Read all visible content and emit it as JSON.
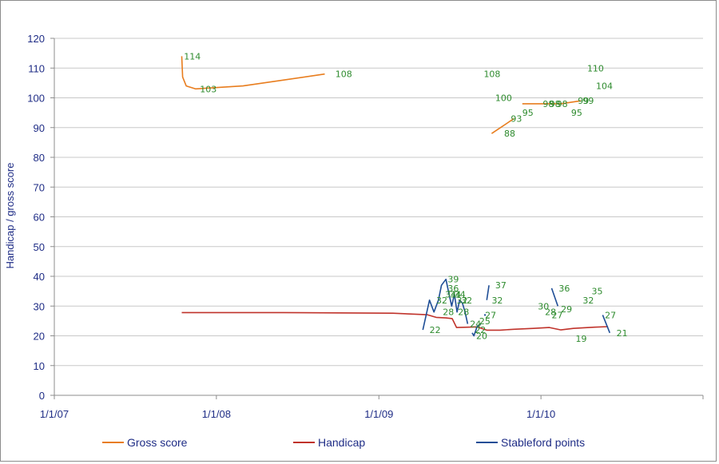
{
  "chart_data": {
    "type": "line",
    "ylabel": "Handicap / gross score",
    "xlabel": "",
    "ylim": [
      0,
      120
    ],
    "y_ticks": [
      "0",
      "10",
      "20",
      "30",
      "40",
      "50",
      "60",
      "70",
      "80",
      "90",
      "100",
      "110",
      "120"
    ],
    "x_ticks": [
      {
        "label": "1/1/07",
        "date": "2007-01-01"
      },
      {
        "label": "1/1/08",
        "date": "2008-01-01"
      },
      {
        "label": "1/1/09",
        "date": "2009-01-01"
      },
      {
        "label": "1/1/10",
        "date": "2010-01-01"
      }
    ],
    "x_range": [
      "2007-01-01",
      "2011-01-01"
    ],
    "grid": "horizontal",
    "legend_position": "bottom",
    "colors": {
      "gross": "#e87d1e",
      "handicap": "#c0332b",
      "stableford": "#1f4e96",
      "labels": "#2e8b2e",
      "axis": "#1f2d86"
    },
    "series": [
      {
        "name": "Gross score",
        "key": "gross",
        "segments": [
          [
            [
              "2007-10-15",
              114
            ],
            [
              "2007-10-17",
              107
            ],
            [
              "2007-10-25",
              104
            ],
            [
              "2007-11-15",
              103
            ],
            [
              "2008-03-01",
              104
            ],
            [
              "2008-09-01",
              108
            ]
          ],
          [
            [
              "2009-09-12",
              88
            ],
            [
              "2009-11-01",
              93
            ]
          ],
          [
            [
              "2009-11-20",
              98
            ],
            [
              "2010-02-15",
              98
            ],
            [
              "2010-04-01",
              99
            ]
          ]
        ],
        "labels": [
          {
            "date": "2007-10-20",
            "value": 114
          },
          {
            "date": "2007-11-25",
            "value": 103
          },
          {
            "date": "2008-09-25",
            "value": 108
          },
          {
            "date": "2009-08-25",
            "value": 108
          },
          {
            "date": "2009-09-20",
            "value": 100
          },
          {
            "date": "2009-10-10",
            "value": 88
          },
          {
            "date": "2009-10-25",
            "value": 93
          },
          {
            "date": "2009-11-20",
            "value": 95
          },
          {
            "date": "2010-01-05",
            "value": 98
          },
          {
            "date": "2010-01-20",
            "value": 98
          },
          {
            "date": "2010-02-05",
            "value": 98
          },
          {
            "date": "2010-03-10",
            "value": 95
          },
          {
            "date": "2010-03-25",
            "value": 99
          },
          {
            "date": "2010-04-05",
            "value": 99
          },
          {
            "date": "2010-04-15",
            "value": 110
          },
          {
            "date": "2010-05-05",
            "value": 104
          }
        ]
      },
      {
        "name": "Handicap",
        "key": "handicap",
        "segments": [
          [
            [
              "2007-10-15",
              27.8
            ],
            [
              "2008-06-01",
              27.8
            ],
            [
              "2009-02-01",
              27.6
            ],
            [
              "2009-04-20",
              27.1
            ],
            [
              "2009-05-10",
              26.2
            ],
            [
              "2009-06-01",
              26.0
            ],
            [
              "2009-06-15",
              25.8
            ],
            [
              "2009-06-25",
              22.8
            ],
            [
              "2009-07-20",
              22.9
            ],
            [
              "2009-08-10",
              23.0
            ],
            [
              "2009-09-01",
              21.9
            ],
            [
              "2009-10-01",
              21.9
            ],
            [
              "2009-11-01",
              22.2
            ],
            [
              "2009-12-15",
              22.5
            ],
            [
              "2010-01-20",
              22.8
            ],
            [
              "2010-02-15",
              22.0
            ],
            [
              "2010-03-15",
              22.5
            ],
            [
              "2010-05-01",
              22.9
            ],
            [
              "2010-06-01",
              23.1
            ]
          ]
        ]
      },
      {
        "name": "Stableford points",
        "key": "stableford",
        "segments": [
          [
            [
              "2009-04-10",
              22
            ],
            [
              "2009-04-25",
              32
            ],
            [
              "2009-05-05",
              28
            ],
            [
              "2009-05-15",
              32
            ],
            [
              "2009-05-22",
              37
            ],
            [
              "2009-06-01",
              39
            ],
            [
              "2009-06-08",
              34
            ],
            [
              "2009-06-14",
              30
            ],
            [
              "2009-06-20",
              34
            ],
            [
              "2009-06-26",
              28
            ],
            [
              "2009-07-02",
              32
            ],
            [
              "2009-07-08",
              31
            ],
            [
              "2009-07-14",
              28
            ],
            [
              "2009-07-20",
              24
            ]
          ],
          [
            [
              "2009-07-30",
              21
            ],
            [
              "2009-08-03",
              20
            ],
            [
              "2009-08-10",
              23
            ],
            [
              "2009-08-18",
              24
            ]
          ],
          [
            [
              "2009-08-28",
              27
            ]
          ],
          [
            [
              "2009-09-01",
              32
            ],
            [
              "2009-09-06",
              37
            ]
          ],
          [
            [
              "2010-01-25",
              36
            ],
            [
              "2010-02-08",
              30
            ]
          ],
          [
            [
              "2010-05-20",
              27
            ],
            [
              "2010-06-05",
              21
            ]
          ]
        ],
        "labels": [
          {
            "date": "2009-04-25",
            "value": 22
          },
          {
            "date": "2009-05-10",
            "value": 32
          },
          {
            "date": "2009-05-25",
            "value": 28
          },
          {
            "date": "2009-06-05",
            "value": 39
          },
          {
            "date": "2009-05-30",
            "value": 34
          },
          {
            "date": "2009-06-05",
            "value": 36
          },
          {
            "date": "2009-06-10",
            "value": 34
          },
          {
            "date": "2009-06-20",
            "value": 34
          },
          {
            "date": "2009-06-25",
            "value": 32
          },
          {
            "date": "2009-07-05",
            "value": 32
          },
          {
            "date": "2009-06-28",
            "value": 28
          },
          {
            "date": "2009-07-25",
            "value": 24
          },
          {
            "date": "2009-08-05",
            "value": 22
          },
          {
            "date": "2009-08-08",
            "value": 20
          },
          {
            "date": "2009-08-15",
            "value": 25
          },
          {
            "date": "2009-08-28",
            "value": 27
          },
          {
            "date": "2009-09-12",
            "value": 32
          },
          {
            "date": "2009-09-20",
            "value": 37
          },
          {
            "date": "2009-12-25",
            "value": 30
          },
          {
            "date": "2010-01-10",
            "value": 28
          },
          {
            "date": "2010-01-25",
            "value": 27
          },
          {
            "date": "2010-02-15",
            "value": 29
          },
          {
            "date": "2010-02-10",
            "value": 36
          },
          {
            "date": "2010-03-20",
            "value": 19
          },
          {
            "date": "2010-04-05",
            "value": 32
          },
          {
            "date": "2010-04-25",
            "value": 35
          },
          {
            "date": "2010-05-25",
            "value": 27
          },
          {
            "date": "2010-06-20",
            "value": 21
          }
        ]
      }
    ]
  }
}
